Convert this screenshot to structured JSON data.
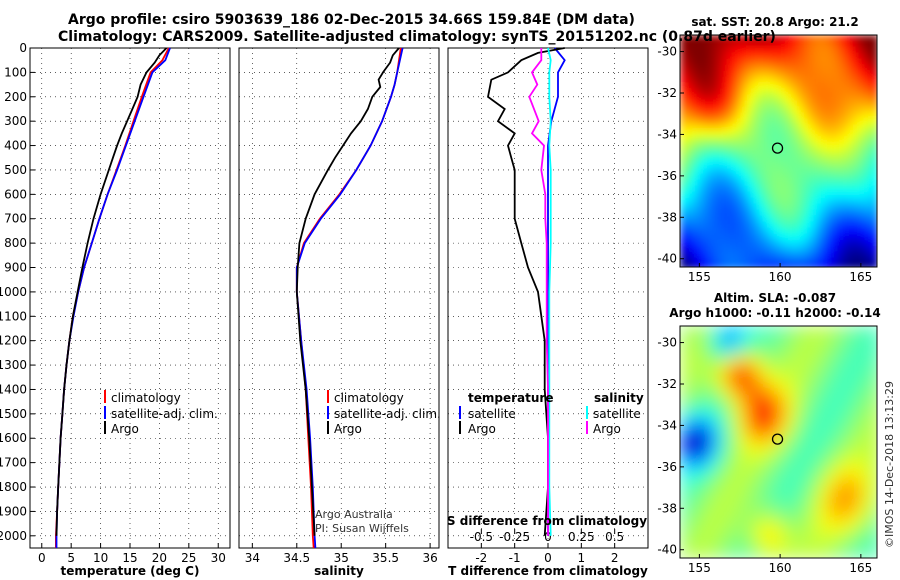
{
  "title": {
    "line1": "Argo profile: csiro 5903639_186 02-Dec-2015 34.66S 159.84E (DM data)",
    "line2": "Climatology: CARS2009. Satellite-adjusted climatology: synTS_20151202.nc (0.87d earlier)"
  },
  "colors": {
    "climatology": "#ff0000",
    "satellite": "#0000ff",
    "argo": "#000000",
    "sat_salinity": "#00ffff",
    "argo_salinity": "#ff00ff"
  },
  "credits": {
    "line1": "Argo Australia",
    "line2": "PI: Susan Wijffels"
  },
  "timestamp": "©IMOS 14-Dec-2018 13:13:29",
  "legend_profile": {
    "climatology": "climatology",
    "satellite": "satellite-adj. clim.",
    "argo": "Argo"
  },
  "legend_diff": {
    "temp_title": "temperature",
    "sal_title": "salinity",
    "satellite": "satellite",
    "argo": "Argo"
  },
  "chart_data": [
    {
      "type": "line",
      "name": "temperature-profile",
      "xlabel": "temperature (deg C)",
      "ylabel": "",
      "xlim": [
        -2,
        32
      ],
      "ylim": [
        0,
        2050
      ],
      "xticks": [
        0,
        5,
        10,
        15,
        20,
        25,
        30
      ],
      "yticks": [
        0,
        100,
        200,
        300,
        400,
        500,
        600,
        700,
        800,
        900,
        1000,
        1100,
        1200,
        1300,
        1400,
        1500,
        1600,
        1700,
        1800,
        1900,
        2000
      ],
      "series": [
        {
          "name": "climatology",
          "depth": [
            0,
            50,
            100,
            200,
            300,
            400,
            500,
            600,
            700,
            800,
            900,
            1000,
            1100,
            1200,
            1300,
            1400,
            1500,
            1600,
            1700,
            1800,
            1900,
            2000,
            2050
          ],
          "values": [
            21.6,
            20.5,
            18.5,
            17.0,
            15.6,
            14.2,
            12.7,
            11.2,
            9.8,
            8.5,
            7.2,
            6.2,
            5.3,
            4.7,
            4.2,
            3.8,
            3.5,
            3.2,
            3.0,
            2.8,
            2.6,
            2.4,
            2.4
          ]
        },
        {
          "name": "satellite-adj. clim.",
          "depth": [
            0,
            50,
            100,
            200,
            300,
            400,
            500,
            600,
            700,
            800,
            900,
            1000,
            1100,
            1200,
            1300,
            1400,
            1500,
            1600,
            1700,
            1800,
            1900,
            2000,
            2050
          ],
          "values": [
            21.8,
            21.0,
            18.8,
            17.3,
            15.8,
            14.3,
            12.8,
            11.2,
            9.8,
            8.5,
            7.2,
            6.2,
            5.4,
            4.7,
            4.2,
            3.8,
            3.5,
            3.2,
            3.0,
            2.8,
            2.6,
            2.5,
            2.5
          ]
        },
        {
          "name": "Argo",
          "depth": [
            0,
            30,
            60,
            100,
            150,
            200,
            250,
            300,
            350,
            400,
            450,
            500,
            600,
            700,
            800,
            900,
            1000,
            1100,
            1200,
            1300,
            1400,
            1500,
            1600,
            1700,
            1800,
            1900,
            2000
          ],
          "values": [
            21.2,
            20.0,
            19.2,
            17.8,
            16.8,
            16.3,
            15.4,
            14.5,
            13.6,
            12.8,
            12.1,
            11.4,
            10.0,
            8.8,
            7.8,
            6.9,
            6.1,
            5.3,
            4.7,
            4.2,
            3.8,
            3.5,
            3.2,
            3.0,
            2.8,
            2.6,
            2.5
          ]
        }
      ]
    },
    {
      "type": "line",
      "name": "salinity-profile",
      "xlabel": "salinity",
      "ylabel": "",
      "xlim": [
        33.85,
        36.1
      ],
      "ylim": [
        0,
        2050
      ],
      "xticks": [
        34,
        34.5,
        35,
        35.5,
        36
      ],
      "series": [
        {
          "name": "climatology",
          "depth": [
            0,
            50,
            100,
            150,
            200,
            300,
            400,
            500,
            600,
            700,
            800,
            900,
            1000,
            1200,
            1400,
            1600,
            1800,
            2000,
            2050
          ],
          "values": [
            35.67,
            35.65,
            35.63,
            35.6,
            35.56,
            35.46,
            35.33,
            35.17,
            34.98,
            34.76,
            34.58,
            34.5,
            34.5,
            34.55,
            34.6,
            34.63,
            34.66,
            34.68,
            34.69
          ]
        },
        {
          "name": "satellite-adj. clim.",
          "depth": [
            0,
            50,
            100,
            150,
            200,
            300,
            400,
            500,
            600,
            700,
            800,
            900,
            1000,
            1200,
            1400,
            1600,
            1800,
            2000,
            2050
          ],
          "values": [
            35.69,
            35.66,
            35.63,
            35.6,
            35.56,
            35.46,
            35.33,
            35.17,
            34.99,
            34.77,
            34.59,
            34.5,
            34.5,
            34.55,
            34.61,
            34.65,
            34.68,
            34.7,
            34.71
          ]
        },
        {
          "name": "Argo",
          "depth": [
            0,
            30,
            60,
            100,
            130,
            160,
            200,
            250,
            300,
            350,
            400,
            450,
            500,
            600,
            700,
            800,
            900,
            1000,
            1200,
            1400,
            1600,
            1800,
            2000
          ],
          "values": [
            35.65,
            35.58,
            35.55,
            35.47,
            35.42,
            35.44,
            35.35,
            35.3,
            35.22,
            35.11,
            35.02,
            34.93,
            34.85,
            34.7,
            34.6,
            34.53,
            34.51,
            34.5,
            34.54,
            34.6,
            34.64,
            34.67,
            34.7
          ]
        }
      ]
    },
    {
      "type": "line",
      "name": "difference-from-climatology",
      "xlabel": "T difference from climatology",
      "xlabel_top": "S difference from climatology",
      "xlim": [
        -3,
        3
      ],
      "ylim": [
        0,
        2050
      ],
      "xticks": [
        -2,
        -1,
        0,
        1,
        2
      ],
      "xticks_top": [
        -0.5,
        -0.25,
        0,
        0.25,
        0.5
      ],
      "xticklabels_top": [
        "-0.5",
        "-0.25",
        "0",
        "0.25",
        "0.5"
      ],
      "series": [
        {
          "name": "temperature satellite",
          "depth": [
            0,
            50,
            100,
            200,
            300,
            400,
            500,
            600,
            700,
            800,
            1000,
            1200,
            1400,
            1600,
            2000
          ],
          "values": [
            0.2,
            0.5,
            0.3,
            0.3,
            0.1,
            0.0,
            0.0,
            0.0,
            0.0,
            0.0,
            0.0,
            0.0,
            0.0,
            0.0,
            0.0
          ]
        },
        {
          "name": "temperature Argo",
          "depth": [
            0,
            20,
            50,
            100,
            130,
            200,
            250,
            300,
            350,
            400,
            450,
            500,
            550,
            600,
            700,
            800,
            900,
            1000,
            1200,
            1400,
            1600,
            1800,
            2000
          ],
          "values": [
            0.5,
            -0.3,
            -0.8,
            -1.2,
            -1.7,
            -1.8,
            -1.3,
            -1.5,
            -1.0,
            -1.2,
            -1.1,
            -1.0,
            -1.0,
            -1.0,
            -1.0,
            -0.8,
            -0.6,
            -0.3,
            -0.1,
            -0.1,
            0.0,
            0.0,
            -0.1
          ]
        },
        {
          "name": "salinity satellite",
          "depth": [
            0,
            50,
            100,
            200,
            300,
            400,
            500,
            600,
            800,
            1000,
            1200,
            1400,
            1600,
            1800,
            2000
          ],
          "values": [
            0.0,
            0.02,
            0.01,
            0.01,
            0.02,
            0.01,
            0.02,
            0.02,
            0.02,
            0.01,
            0.01,
            0.01,
            0.01,
            0.01,
            0.02
          ]
        },
        {
          "name": "salinity Argo",
          "depth": [
            0,
            50,
            100,
            150,
            200,
            300,
            350,
            400,
            500,
            600,
            700,
            800,
            1000,
            1200,
            1400,
            1600,
            1800,
            2000
          ],
          "values": [
            -0.05,
            -0.05,
            -0.12,
            -0.08,
            -0.14,
            -0.07,
            -0.12,
            -0.03,
            -0.05,
            -0.02,
            -0.02,
            -0.01,
            -0.01,
            -0.01,
            0.0,
            0.0,
            0.0,
            0.0
          ]
        }
      ]
    },
    {
      "type": "heatmap",
      "name": "sst-map",
      "title": "sat. SST: 20.8 Argo: 21.2",
      "xlim": [
        153.8,
        166
      ],
      "ylim": [
        -40.4,
        -29.2
      ],
      "xticks": [
        155,
        160,
        165
      ],
      "yticks": [
        -30,
        -32,
        -34,
        -36,
        -38,
        -40
      ],
      "float_position": {
        "lon": 159.84,
        "lat": -34.66
      }
    },
    {
      "type": "heatmap",
      "name": "sla-map",
      "title_line1": "Altim. SLA: -0.087",
      "title_line2": "Argo h1000: -0.11 h2000: -0.14",
      "xlim": [
        153.8,
        166
      ],
      "ylim": [
        -40.4,
        -29.2
      ],
      "xticks": [
        155,
        160,
        165
      ],
      "yticks": [
        -30,
        -32,
        -34,
        -36,
        -38,
        -40
      ],
      "float_position": {
        "lon": 159.84,
        "lat": -34.66
      }
    }
  ]
}
